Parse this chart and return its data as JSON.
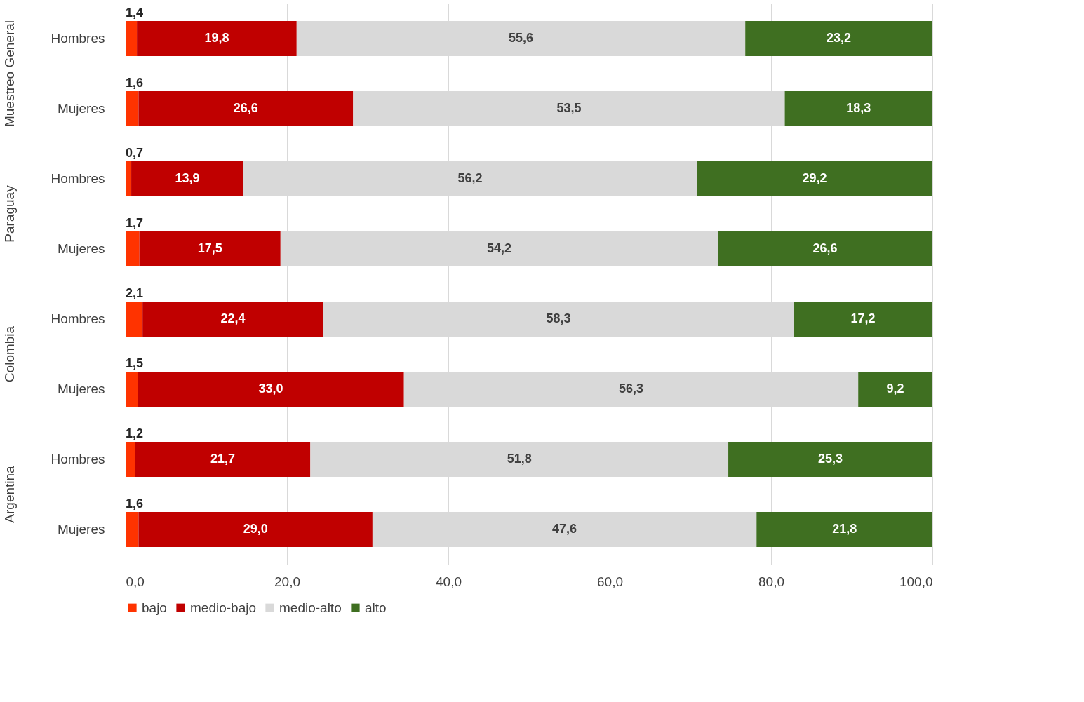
{
  "chart_data": {
    "type": "bar",
    "orientation": "horizontal",
    "stacked": true,
    "categories": [
      "Hombres",
      "Mujeres",
      "Hombres",
      "Mujeres",
      "Hombres",
      "Mujeres",
      "Hombres",
      "Mujeres"
    ],
    "annotations": [
      "Muestreo General",
      "Paraguay",
      "Colombia",
      "Argentina"
    ],
    "series": [
      {
        "name": "bajo",
        "color": "#ff3300",
        "values": [
          1.4,
          1.6,
          0.7,
          1.7,
          2.1,
          1.5,
          1.2,
          1.6
        ],
        "value_labels": [
          "1,4",
          "1,6",
          "0,7",
          "1,7",
          "2,1",
          "1,5",
          "1,2",
          "1,6"
        ]
      },
      {
        "name": "medio-bajo",
        "color": "#c00000",
        "values": [
          19.8,
          26.6,
          13.9,
          17.5,
          22.4,
          33.0,
          21.7,
          29.0
        ],
        "value_labels": [
          "19,8",
          "26,6",
          "13,9",
          "17,5",
          "22,4",
          "33,0",
          "21,7",
          "29,0"
        ]
      },
      {
        "name": "medio-alto",
        "color": "#d9d9d9",
        "values": [
          55.6,
          53.5,
          56.2,
          54.2,
          58.3,
          56.3,
          51.8,
          47.6
        ],
        "value_labels": [
          "55,6",
          "53,5",
          "56,2",
          "54,2",
          "58,3",
          "56,3",
          "51,8",
          "47,6"
        ]
      },
      {
        "name": "alto",
        "color": "#3f6f21",
        "values": [
          23.2,
          18.3,
          29.2,
          26.6,
          17.2,
          9.2,
          25.3,
          21.8
        ],
        "value_labels": [
          "23,2",
          "18,3",
          "29,2",
          "26,6",
          "17,2",
          "9,2",
          "25,3",
          "21,8"
        ]
      }
    ],
    "xlim": [
      0,
      100
    ],
    "xticks": [
      {
        "value": 0,
        "label": "0,0"
      },
      {
        "value": 20,
        "label": "20,0"
      },
      {
        "value": 40,
        "label": "40,0"
      },
      {
        "value": 60,
        "label": "60,0"
      },
      {
        "value": 80,
        "label": "80,0"
      },
      {
        "value": 100,
        "label": "100,0"
      }
    ],
    "grid": "x",
    "legend": "bottom"
  }
}
